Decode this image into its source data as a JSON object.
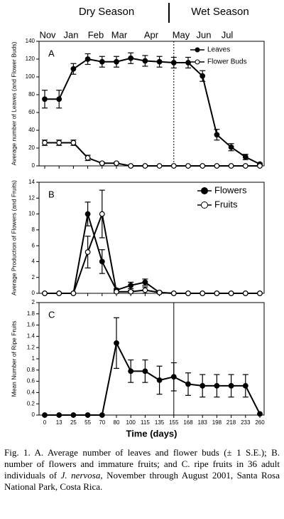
{
  "season_labels": [
    "Dry Season",
    "Wet Season"
  ],
  "months": [
    "Nov",
    "Jan",
    "Feb",
    "Mar",
    "Apr",
    "May",
    "Jun",
    "Jul"
  ],
  "chart_data": [
    {
      "type": "line",
      "panel": "A",
      "ylabel": "Average number of Leaves (and Flower Buds)",
      "ylim": [
        0,
        140
      ],
      "yticks": [
        0,
        20,
        40,
        60,
        80,
        100,
        120,
        140
      ],
      "legend": "top-right",
      "series": [
        {
          "name": "Leaves",
          "color": "#000000",
          "marker": "filled",
          "values": [
            75,
            75,
            109,
            120,
            117,
            117,
            121,
            118,
            117,
            116,
            116,
            101,
            35,
            21,
            10,
            2
          ],
          "errors": [
            10,
            10,
            6,
            6,
            6,
            6,
            6,
            6,
            6,
            6,
            6,
            6,
            6,
            4,
            3,
            1
          ]
        },
        {
          "name": "Flower Buds",
          "color": "#000000",
          "marker": "open",
          "values": [
            26,
            26,
            26,
            9,
            3,
            3,
            0,
            0,
            0,
            0,
            0,
            0,
            0,
            0,
            0,
            0
          ],
          "errors": [
            3,
            3,
            3,
            3,
            1,
            1,
            0,
            0,
            0,
            0,
            0,
            0,
            0,
            0,
            0,
            0
          ]
        }
      ]
    },
    {
      "type": "line",
      "panel": "B",
      "ylabel": "Average Production of Flowers (and Fruits)",
      "ylim": [
        0,
        14
      ],
      "yticks": [
        0,
        2,
        4,
        6,
        8,
        10,
        12,
        14
      ],
      "legend": "top-right",
      "series": [
        {
          "name": "Flowers",
          "color": "#000000",
          "marker": "filled",
          "values": [
            0,
            0,
            0,
            10,
            4,
            0.4,
            1,
            1.4,
            0.1,
            0,
            0,
            0,
            0,
            0,
            0,
            0
          ],
          "errors": [
            0,
            0,
            0,
            1.5,
            1.5,
            0.2,
            0.4,
            0.4,
            0.1,
            0,
            0,
            0,
            0,
            0,
            0,
            0
          ]
        },
        {
          "name": "Fruits",
          "color": "#000000",
          "marker": "open",
          "values": [
            0,
            0,
            0,
            5.2,
            10,
            0.2,
            0.2,
            0.4,
            0.1,
            0,
            0,
            0,
            0,
            0,
            0,
            0
          ],
          "errors": [
            0,
            0,
            0,
            2,
            3,
            0.2,
            0.2,
            0.4,
            0.1,
            0,
            0,
            0,
            0,
            0,
            0,
            0
          ]
        }
      ]
    },
    {
      "type": "line",
      "panel": "C",
      "ylabel": "Mean Number of Ripe Fruits",
      "xlabel": "Time (days)",
      "categories": [
        "0",
        "13",
        "25",
        "55",
        "70",
        "80",
        "100",
        "115",
        "135",
        "155",
        "168",
        "183",
        "198",
        "218",
        "233",
        "260"
      ],
      "ylim": [
        0,
        2
      ],
      "yticks": [
        0,
        0.2,
        0.4,
        0.6,
        0.8,
        1,
        1.2,
        1.4,
        1.6,
        1.8,
        2
      ],
      "series": [
        {
          "color": "#000000",
          "marker": "filled",
          "values": [
            0,
            0,
            0,
            0,
            0,
            1.28,
            0.78,
            0.78,
            0.62,
            0.68,
            0.55,
            0.52,
            0.52,
            0.52,
            0.52,
            0.02
          ],
          "errors": [
            0,
            0,
            0,
            0,
            0,
            0.45,
            0.2,
            0.2,
            0.25,
            0.25,
            0.2,
            0.2,
            0.2,
            0.2,
            0.2,
            0
          ]
        }
      ]
    }
  ],
  "caption": [
    "Fig. 1. A. Average number of leaves and flower buds (± 1 S.E.); B. number of flowers and immature fruits; and C. ripe fruits in 36 adult individuals of ",
    "J. nervosa",
    ", November through August 2001, Santa Rosa National Park, Costa Rica."
  ]
}
